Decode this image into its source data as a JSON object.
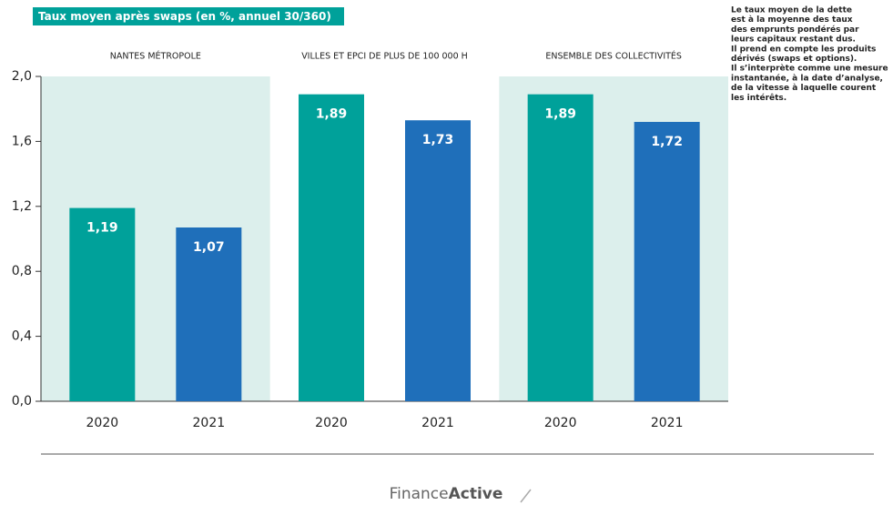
{
  "chart_data": {
    "type": "bar",
    "title": "Taux moyen après swaps (en %, annuel 30/360)",
    "groups": [
      {
        "name": "NANTES MÉTROPOLE",
        "shaded": true,
        "categories": [
          "2020",
          "2021"
        ],
        "values": [
          1.19,
          1.07
        ],
        "value_labels": [
          "1,19",
          "1,07"
        ]
      },
      {
        "name": "VILLES ET EPCI DE PLUS DE 100 000 H",
        "shaded": false,
        "categories": [
          "2020",
          "2021"
        ],
        "values": [
          1.89,
          1.73
        ],
        "value_labels": [
          "1,89",
          "1,73"
        ]
      },
      {
        "name": "ENSEMBLE DES COLLECTIVITÉS",
        "shaded": true,
        "categories": [
          "2020",
          "2021"
        ],
        "values": [
          1.89,
          1.72
        ],
        "value_labels": [
          "1,89",
          "1,72"
        ]
      }
    ],
    "colors": [
      "#00a19a",
      "#1f6fba"
    ],
    "band_color": "#dcefec",
    "ylim": [
      0,
      2
    ],
    "yticks": [
      {
        "value": 0,
        "label": "0,0"
      },
      {
        "value": 0.4,
        "label": "0,4"
      },
      {
        "value": 0.8,
        "label": "0,8"
      },
      {
        "value": 1.2,
        "label": "1,2"
      },
      {
        "value": 1.6,
        "label": "1,6"
      },
      {
        "value": 2,
        "label": "2,0"
      }
    ],
    "annotation": [
      "Le taux moyen de la dette",
      "est à la moyenne des taux",
      "des emprunts pondérés par",
      "leurs capitaux restant dus.",
      "Il prend en compte les produits",
      "dérivés (swaps et options).",
      "Il s’interprète comme une mesure",
      "instantanée, à la date d’analyse,",
      "de la vitesse à laquelle courent",
      "les intérêts."
    ]
  },
  "footer": {
    "logo": [
      "Finance",
      "Active"
    ]
  }
}
